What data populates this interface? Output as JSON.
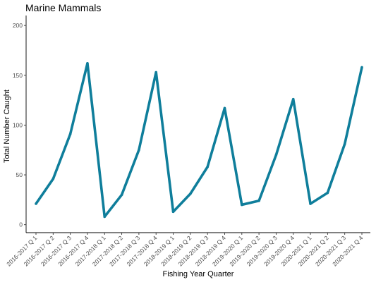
{
  "chart_data": {
    "type": "line",
    "title": "Marine Mammals",
    "xlabel": "Fishing Year Quarter",
    "ylabel": "Total Number Caught",
    "ylim": [
      -8,
      210
    ],
    "yticks": [
      0,
      50,
      100,
      150,
      200
    ],
    "grid": false,
    "line_color": "#0f7e9b",
    "categories": [
      "2016-2017 Q 1",
      "2016-2017 Q 2",
      "2016-2017 Q 3",
      "2016-2017 Q 4",
      "2017-2018 Q 1",
      "2017-2018 Q 2",
      "2017-2018 Q 3",
      "2017-2018 Q 4",
      "2018-2019 Q 1",
      "2018-2019 Q 2",
      "2018-2019 Q 3",
      "2018-2019 Q 4",
      "2019-2020 Q 1",
      "2019-2020 Q 2",
      "2019-2020 Q 3",
      "2019-2020 Q 4",
      "2020-2021 Q 1",
      "2020-2021 Q 2",
      "2020-2021 Q 3",
      "2020-2021 Q 4"
    ],
    "values": [
      21,
      46,
      91,
      162,
      8,
      30,
      75,
      153,
      13,
      31,
      58,
      117,
      20,
      24,
      70,
      126,
      21,
      32,
      81,
      158
    ]
  }
}
